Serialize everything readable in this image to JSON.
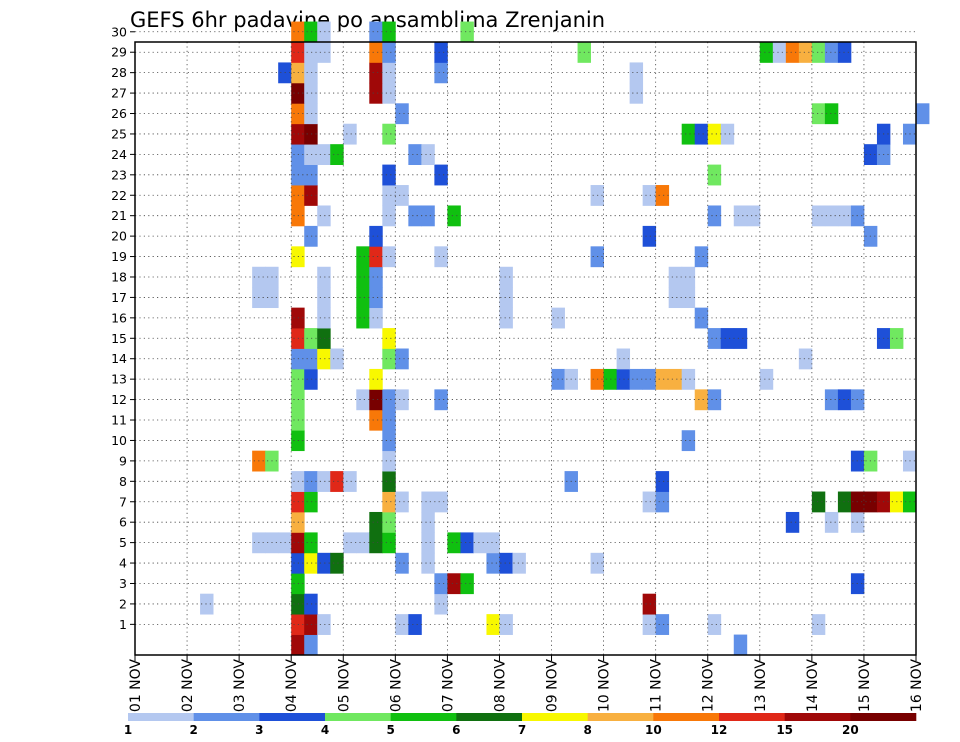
{
  "chart_data": {
    "type": "heatmap",
    "title": "GEFS 6hr padavine po ansamblima Zrenjanin",
    "xlabel": "",
    "ylabel": "",
    "x_ticks": [
      "01 NOV",
      "02 NOV",
      "03 NOV",
      "04 NOV",
      "05 NOV",
      "06 NOV",
      "07 NOV",
      "08 NOV",
      "09 NOV",
      "10 NOV",
      "11 NOV",
      "12 NOV",
      "13 NOV",
      "14 NOV",
      "15 NOV",
      "16 NOV"
    ],
    "y_ticks": [
      "1",
      "2",
      "3",
      "4",
      "5",
      "6",
      "7",
      "8",
      "9",
      "10",
      "11",
      "12",
      "13",
      "14",
      "15",
      "16",
      "17",
      "18",
      "19",
      "20",
      "21",
      "22",
      "23",
      "24",
      "25",
      "26",
      "27",
      "28",
      "29",
      "30"
    ],
    "x_range_days": [
      1,
      16
    ],
    "time_step_hours": 6,
    "y_range": [
      0,
      30
    ],
    "grid": true,
    "colorbar": {
      "position": "bottom",
      "labels": [
        "1",
        "2",
        "3",
        "4",
        "5",
        "6",
        "7",
        "8",
        "10",
        "12",
        "15",
        "20"
      ],
      "colors": [
        "#b4c8f0",
        "#6090e8",
        "#1e50d8",
        "#70e860",
        "#10c010",
        "#107010",
        "#f8f800",
        "#f8b040",
        "#f87808",
        "#e02818",
        "#a00808",
        "#780000"
      ]
    },
    "colors": {
      "c1": "#b4c8f0",
      "c2": "#6090e8",
      "c3": "#1e50d8",
      "c4": "#70e860",
      "c5": "#10c010",
      "c6": "#107010",
      "c7": "#f8f800",
      "c8": "#f8b040",
      "c9": "#f87808",
      "c10": "#e02818",
      "c11": "#a00808",
      "c12": "#780000"
    },
    "cells_note": "Each member row lists [time_step, class]; time_step counted from 01 NOV 00 UTC in 6-hour steps; class 1-12 maps to colorbar bins.",
    "members": {
      "0": [
        [
          12,
          11
        ],
        [
          13,
          2
        ],
        [
          46,
          2
        ]
      ],
      "1": [
        [
          12,
          10
        ],
        [
          13,
          11
        ],
        [
          14,
          1
        ],
        [
          20,
          1
        ],
        [
          21,
          3
        ],
        [
          27,
          7
        ],
        [
          28,
          1
        ],
        [
          39,
          1
        ],
        [
          40,
          2
        ],
        [
          44,
          1
        ],
        [
          52,
          1
        ]
      ],
      "2": [
        [
          5,
          1
        ],
        [
          12,
          6
        ],
        [
          13,
          3
        ],
        [
          23,
          1
        ],
        [
          39,
          11
        ]
      ],
      "3": [
        [
          12,
          5
        ],
        [
          23,
          2
        ],
        [
          24,
          11
        ],
        [
          25,
          5
        ],
        [
          55,
          3
        ]
      ],
      "4": [
        [
          12,
          3
        ],
        [
          13,
          7
        ],
        [
          14,
          3
        ],
        [
          15,
          6
        ],
        [
          20,
          2
        ],
        [
          22,
          1
        ],
        [
          27,
          2
        ],
        [
          28,
          3
        ],
        [
          29,
          1
        ],
        [
          35,
          1
        ]
      ],
      "5": [
        [
          9,
          1
        ],
        [
          10,
          1
        ],
        [
          11,
          1
        ],
        [
          12,
          11
        ],
        [
          13,
          5
        ],
        [
          16,
          1
        ],
        [
          17,
          1
        ],
        [
          18,
          6
        ],
        [
          19,
          5
        ],
        [
          22,
          1
        ],
        [
          24,
          5
        ],
        [
          25,
          3
        ],
        [
          26,
          1
        ],
        [
          27,
          1
        ]
      ],
      "6": [
        [
          12,
          8
        ],
        [
          18,
          6
        ],
        [
          19,
          4
        ],
        [
          22,
          1
        ],
        [
          50,
          3
        ],
        [
          53,
          1
        ],
        [
          55,
          1
        ]
      ],
      "7": [
        [
          12,
          10
        ],
        [
          13,
          5
        ],
        [
          19,
          8
        ],
        [
          20,
          1
        ],
        [
          22,
          1
        ],
        [
          23,
          1
        ],
        [
          39,
          1
        ],
        [
          40,
          2
        ],
        [
          52,
          6
        ],
        [
          54,
          6
        ],
        [
          55,
          12
        ],
        [
          56,
          12
        ],
        [
          57,
          11
        ],
        [
          58,
          7
        ],
        [
          59,
          5
        ]
      ],
      "8": [
        [
          12,
          1
        ],
        [
          13,
          2
        ],
        [
          14,
          1
        ],
        [
          15,
          10
        ],
        [
          16,
          1
        ],
        [
          19,
          6
        ],
        [
          33,
          2
        ],
        [
          40,
          3
        ]
      ],
      "9": [
        [
          9,
          9
        ],
        [
          10,
          4
        ],
        [
          19,
          1
        ],
        [
          55,
          3
        ],
        [
          56,
          4
        ],
        [
          59,
          1
        ]
      ],
      "10": [
        [
          12,
          5
        ],
        [
          19,
          2
        ],
        [
          42,
          2
        ]
      ],
      "11": [
        [
          12,
          4
        ],
        [
          18,
          9
        ],
        [
          19,
          2
        ]
      ],
      "12": [
        [
          12,
          4
        ],
        [
          17,
          1
        ],
        [
          18,
          12
        ],
        [
          19,
          2
        ],
        [
          20,
          1
        ],
        [
          23,
          2
        ],
        [
          43,
          8
        ],
        [
          44,
          2
        ],
        [
          53,
          2
        ],
        [
          54,
          3
        ],
        [
          55,
          2
        ]
      ],
      "13": [
        [
          12,
          4
        ],
        [
          13,
          3
        ],
        [
          18,
          7
        ],
        [
          32,
          2
        ],
        [
          33,
          1
        ],
        [
          35,
          9
        ],
        [
          36,
          5
        ],
        [
          37,
          3
        ],
        [
          38,
          2
        ],
        [
          39,
          2
        ],
        [
          40,
          8
        ],
        [
          41,
          8
        ],
        [
          42,
          1
        ],
        [
          48,
          1
        ]
      ],
      "14": [
        [
          12,
          2
        ],
        [
          13,
          2
        ],
        [
          14,
          7
        ],
        [
          15,
          1
        ],
        [
          19,
          4
        ],
        [
          20,
          2
        ],
        [
          37,
          1
        ],
        [
          51,
          1
        ]
      ],
      "15": [
        [
          12,
          10
        ],
        [
          13,
          4
        ],
        [
          14,
          6
        ],
        [
          19,
          7
        ],
        [
          44,
          2
        ],
        [
          45,
          3
        ],
        [
          46,
          3
        ],
        [
          57,
          3
        ],
        [
          58,
          4
        ]
      ],
      "16": [
        [
          12,
          11
        ],
        [
          14,
          1
        ],
        [
          17,
          5
        ],
        [
          18,
          1
        ],
        [
          28,
          1
        ],
        [
          32,
          1
        ],
        [
          43,
          2
        ]
      ],
      "17": [
        [
          9,
          1
        ],
        [
          10,
          1
        ],
        [
          14,
          1
        ],
        [
          17,
          5
        ],
        [
          18,
          2
        ],
        [
          28,
          1
        ],
        [
          41,
          1
        ],
        [
          42,
          1
        ]
      ],
      "18": [
        [
          9,
          1
        ],
        [
          10,
          1
        ],
        [
          14,
          1
        ],
        [
          17,
          5
        ],
        [
          18,
          2
        ],
        [
          28,
          1
        ],
        [
          41,
          1
        ],
        [
          42,
          1
        ]
      ],
      "19": [
        [
          12,
          7
        ],
        [
          17,
          5
        ],
        [
          18,
          10
        ],
        [
          19,
          1
        ],
        [
          23,
          1
        ],
        [
          35,
          2
        ],
        [
          43,
          2
        ]
      ],
      "20": [
        [
          13,
          2
        ],
        [
          18,
          3
        ],
        [
          39,
          3
        ],
        [
          56,
          2
        ]
      ],
      "21": [
        [
          12,
          9
        ],
        [
          14,
          1
        ],
        [
          19,
          1
        ],
        [
          21,
          2
        ],
        [
          22,
          2
        ],
        [
          24,
          5
        ],
        [
          44,
          2
        ],
        [
          46,
          1
        ],
        [
          47,
          1
        ],
        [
          52,
          1
        ],
        [
          53,
          1
        ],
        [
          54,
          1
        ],
        [
          55,
          2
        ]
      ],
      "22": [
        [
          12,
          9
        ],
        [
          13,
          11
        ],
        [
          19,
          1
        ],
        [
          20,
          1
        ],
        [
          35,
          1
        ],
        [
          39,
          1
        ],
        [
          40,
          9
        ]
      ],
      "23": [
        [
          12,
          2
        ],
        [
          13,
          2
        ],
        [
          19,
          3
        ],
        [
          23,
          3
        ],
        [
          44,
          4
        ]
      ],
      "24": [
        [
          12,
          2
        ],
        [
          13,
          1
        ],
        [
          14,
          1
        ],
        [
          15,
          5
        ],
        [
          21,
          2
        ],
        [
          22,
          1
        ],
        [
          56,
          3
        ],
        [
          57,
          2
        ]
      ],
      "25": [
        [
          12,
          11
        ],
        [
          13,
          12
        ],
        [
          16,
          1
        ],
        [
          19,
          4
        ],
        [
          42,
          5
        ],
        [
          43,
          3
        ],
        [
          44,
          7
        ],
        [
          45,
          1
        ],
        [
          57,
          3
        ],
        [
          59,
          2
        ]
      ],
      "26": [
        [
          12,
          9
        ],
        [
          13,
          1
        ],
        [
          20,
          2
        ],
        [
          52,
          4
        ],
        [
          53,
          5
        ],
        [
          60,
          2
        ]
      ],
      "27": [
        [
          12,
          12
        ],
        [
          13,
          1
        ],
        [
          18,
          11
        ],
        [
          19,
          1
        ],
        [
          38,
          1
        ]
      ],
      "28": [
        [
          11,
          3
        ],
        [
          12,
          8
        ],
        [
          13,
          1
        ],
        [
          18,
          11
        ],
        [
          19,
          1
        ],
        [
          23,
          2
        ],
        [
          38,
          1
        ]
      ],
      "29": [
        [
          12,
          10
        ],
        [
          13,
          1
        ],
        [
          14,
          1
        ],
        [
          18,
          9
        ],
        [
          19,
          2
        ],
        [
          23,
          3
        ],
        [
          34,
          4
        ],
        [
          48,
          5
        ],
        [
          49,
          1
        ],
        [
          50,
          9
        ],
        [
          51,
          8
        ],
        [
          52,
          4
        ],
        [
          53,
          2
        ],
        [
          54,
          3
        ]
      ],
      "30": [
        [
          12,
          9
        ],
        [
          13,
          5
        ],
        [
          14,
          1
        ],
        [
          18,
          2
        ],
        [
          19,
          5
        ],
        [
          25,
          4
        ]
      ]
    }
  }
}
